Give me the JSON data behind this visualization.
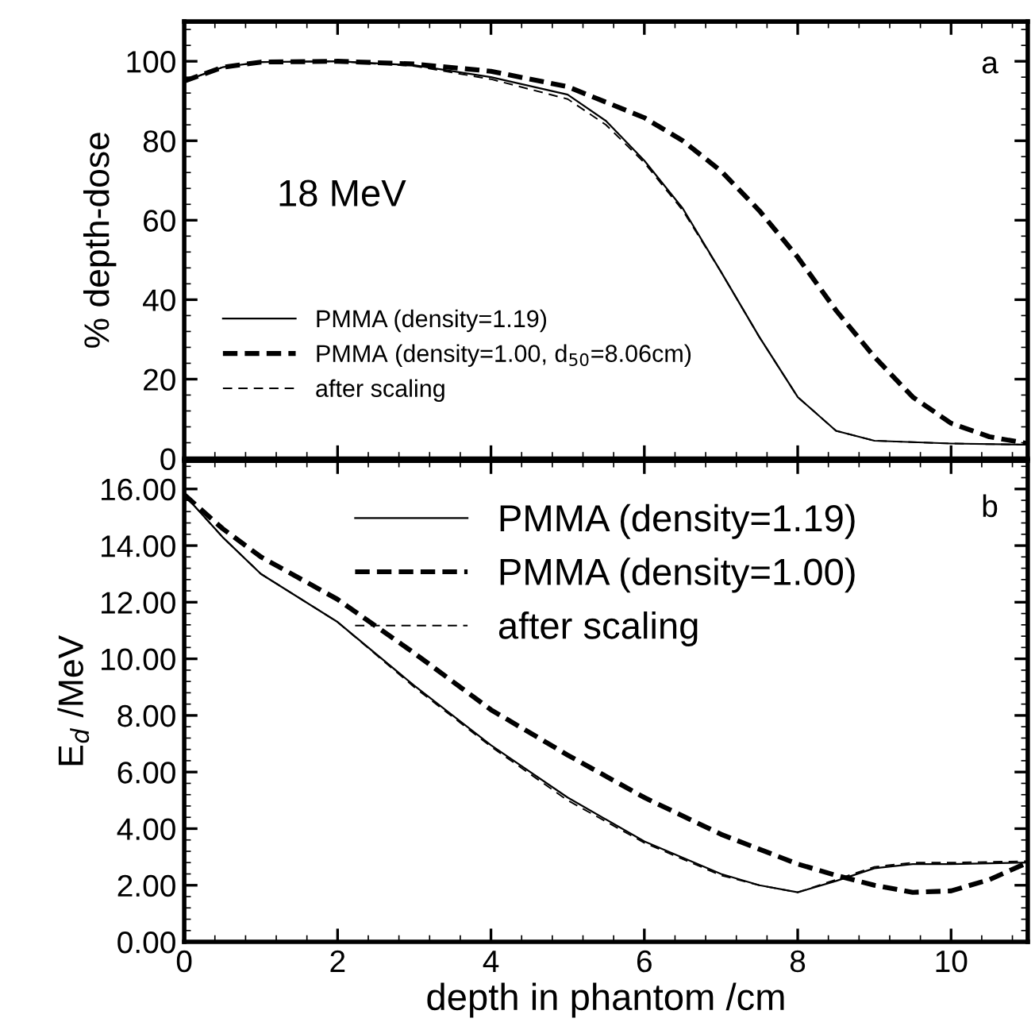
{
  "chart_data": [
    {
      "type": "line",
      "ylabel": "% depth-dose",
      "annotations": [
        "a",
        "18 MeV"
      ],
      "xlim": [
        0,
        11
      ],
      "xticks": [
        0,
        2,
        4,
        6,
        8,
        10
      ],
      "ylim": [
        0,
        110
      ],
      "yticks": [
        0,
        20,
        40,
        60,
        80,
        100
      ],
      "tick_labels": "y",
      "grid": false,
      "legend": "bottom left",
      "series": [
        {
          "name": "PMMA (density=1.19)",
          "color": "#000000",
          "line_style": "solid",
          "x": [
            0,
            0.5,
            1,
            2,
            3,
            4,
            5,
            5.5,
            6,
            6.5,
            7,
            7.5,
            8,
            8.5,
            9,
            10,
            11
          ],
          "values": [
            95,
            98.5,
            99.8,
            100,
            99,
            96,
            91.6,
            85,
            75,
            63,
            47,
            30.6,
            15.5,
            7,
            4.5,
            3.8,
            3.5
          ]
        },
        {
          "name": "PMMA (density=1.00, d$_{50}$=8.06cm)",
          "color": "#000000",
          "line_style": "dashed",
          "x": [
            0,
            0.5,
            1,
            2,
            3,
            4,
            5,
            6,
            6.5,
            7,
            7.5,
            8,
            8.5,
            9,
            9.5,
            10,
            10.5,
            11
          ],
          "values": [
            95,
            98.5,
            99.8,
            100,
            99.3,
            97.5,
            93.6,
            85.8,
            80,
            72.4,
            62.4,
            50.7,
            37.3,
            25.6,
            15.5,
            8.9,
            5.5,
            3.8
          ]
        },
        {
          "name": "after scaling",
          "color": "#000000",
          "line_style": "dashed",
          "x": [
            0,
            0.5,
            1,
            2,
            3,
            4,
            5,
            5.5,
            6,
            6.5,
            7,
            7.5,
            8,
            8.5,
            9,
            10,
            11
          ],
          "values": [
            95,
            98.5,
            99.8,
            100,
            98.8,
            95.5,
            90.5,
            84,
            74.5,
            62.5,
            47,
            30.6,
            15.5,
            7,
            4.5,
            3.8,
            3.5
          ]
        }
      ]
    },
    {
      "type": "line",
      "xlabel": "depth in phantom /cm",
      "ylabel": "E$_{d}$ /MeV",
      "annotations": [
        "b"
      ],
      "xlim": [
        0,
        11
      ],
      "xticks": [
        0,
        2,
        4,
        6,
        8,
        10
      ],
      "ylim": [
        0,
        17
      ],
      "yticks": [
        {
          "value": 0,
          "label": "0.00"
        },
        {
          "value": 2,
          "label": "2.00"
        },
        {
          "value": 4,
          "label": "4.00"
        },
        {
          "value": 6,
          "label": "6.00"
        },
        {
          "value": 8,
          "label": "8.00"
        },
        {
          "value": 10,
          "label": "10.00"
        },
        {
          "value": 12,
          "label": "12.00"
        },
        {
          "value": 14,
          "label": "14.00"
        },
        {
          "value": 16,
          "label": "16.00"
        }
      ],
      "grid": false,
      "legend": "top",
      "series": [
        {
          "name": "PMMA (density=1.19)",
          "color": "#000000",
          "line_style": "solid",
          "x": [
            0,
            0.5,
            1,
            2,
            3,
            4,
            5,
            6,
            7,
            7.5,
            8,
            8.5,
            9,
            9.5,
            10,
            11
          ],
          "values": [
            15.8,
            14.3,
            13.0,
            11.3,
            9.05,
            6.95,
            5.1,
            3.55,
            2.4,
            2.0,
            1.75,
            2.15,
            2.6,
            2.75,
            2.75,
            2.8
          ]
        },
        {
          "name": "PMMA (density=1.00)",
          "color": "#000000",
          "line_style": "dashed",
          "x": [
            0,
            0.5,
            1,
            2,
            3,
            4,
            5,
            6,
            7,
            8,
            8.5,
            9,
            9.5,
            10,
            10.5,
            11
          ],
          "values": [
            15.8,
            14.6,
            13.6,
            12.1,
            10.2,
            8.2,
            6.6,
            5.1,
            3.8,
            2.75,
            2.35,
            2.0,
            1.75,
            1.8,
            2.2,
            2.8
          ]
        },
        {
          "name": "after scaling",
          "color": "#000000",
          "line_style": "dashed",
          "x": [
            0,
            0.5,
            1,
            2,
            3,
            4,
            5,
            6,
            7,
            7.5,
            8,
            8.5,
            9,
            9.5,
            10,
            11
          ],
          "values": [
            15.8,
            14.3,
            13.0,
            11.3,
            9.0,
            6.9,
            5.0,
            3.5,
            2.35,
            2.0,
            1.75,
            2.2,
            2.65,
            2.8,
            2.8,
            2.85
          ]
        }
      ]
    }
  ]
}
